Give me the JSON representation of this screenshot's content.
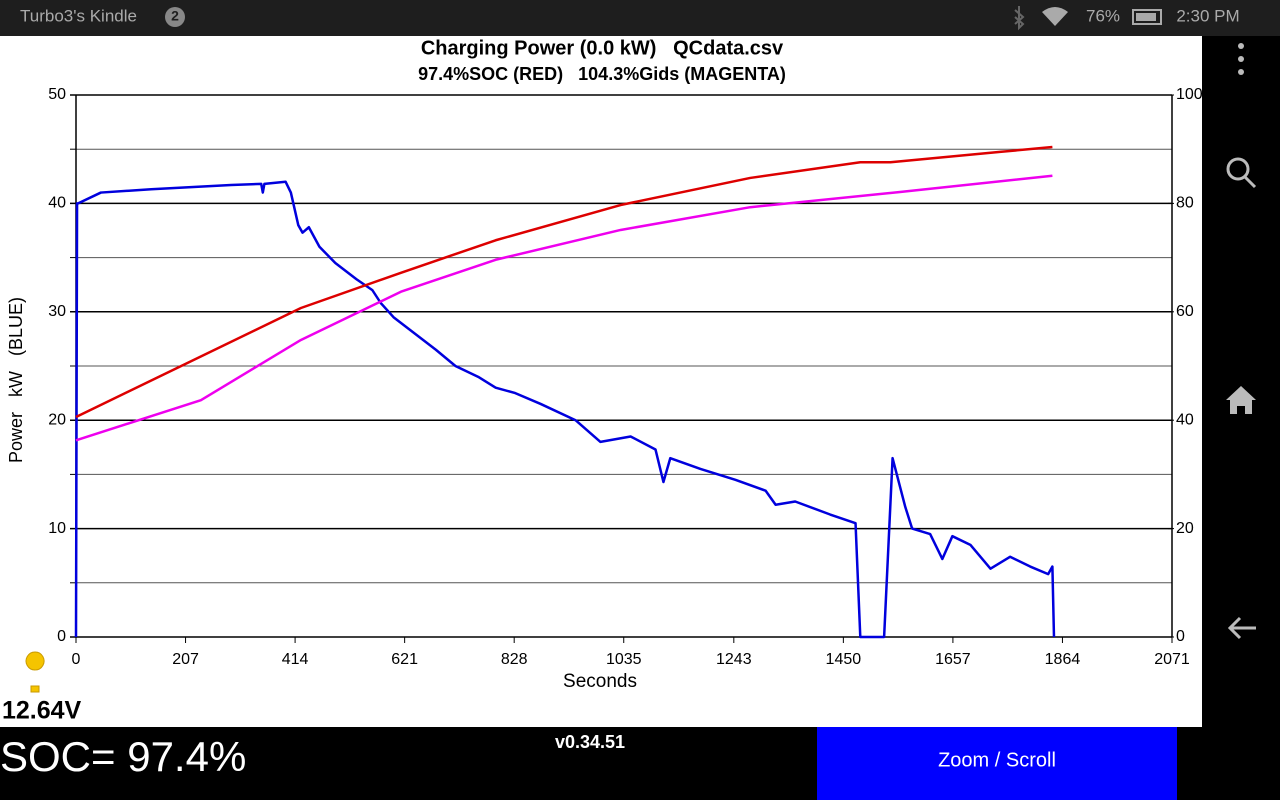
{
  "status_bar": {
    "device": "Turbo3's Kindle",
    "notifications": "2",
    "battery": "76%",
    "time": "2:30 PM"
  },
  "chart_data": {
    "type": "line",
    "title": "Charging Power (0.0 kW)   QCdata.csv",
    "subtitle": "97.4%SOC (RED)   104.3%Gids (MAGENTA)",
    "x_label": "Seconds",
    "y_label": "Power   kW   (BLUE)",
    "xlim": [
      0,
      2071
    ],
    "xticks": [
      0,
      207,
      414,
      621,
      828,
      1035,
      1243,
      1450,
      1657,
      1864,
      2071
    ],
    "ylim": [
      0,
      50
    ],
    "yticks": [
      0,
      10,
      20,
      30,
      40,
      50
    ],
    "yminor": [
      5,
      15,
      25,
      35,
      45
    ],
    "y2lim": [
      0,
      100
    ],
    "y2ticks": [
      0,
      20,
      40,
      60,
      80,
      100
    ],
    "grid": true,
    "series": [
      {
        "name": "Power",
        "color": "#0000dd",
        "axis": "y",
        "x": [
          0,
          2,
          4,
          47,
          142,
          293,
          350,
          353,
          356,
          396,
          406,
          420,
          428,
          440,
          460,
          490,
          530,
          560,
          576,
          600,
          640,
          680,
          717,
          760,
          793,
          830,
          878,
          944,
          991,
          1048,
          1095,
          1110,
          1123,
          1180,
          1246,
          1303,
          1322,
          1359,
          1425,
          1473,
          1482,
          1527,
          1543,
          1567,
          1580,
          1614,
          1637,
          1656,
          1690,
          1728,
          1765,
          1803,
          1837,
          1845,
          1848
        ],
        "values": [
          0,
          40,
          40,
          41,
          41.3,
          41.7,
          41.8,
          41,
          41.8,
          42,
          41,
          38,
          37.3,
          37.8,
          36,
          34.5,
          33,
          32,
          30.8,
          29.5,
          28,
          26.5,
          25,
          24,
          23,
          22.5,
          21.5,
          20,
          18,
          18.5,
          17.3,
          14.3,
          16.5,
          15.5,
          14.5,
          13.5,
          12.2,
          12.5,
          11.3,
          10.5,
          0,
          0,
          16.5,
          12,
          10,
          9.5,
          7.2,
          9.3,
          8.5,
          6.3,
          7.4,
          6.5,
          5.8,
          6.5,
          0
        ]
      },
      {
        "name": "SOC",
        "color": "#dd0000",
        "axis": "y2",
        "x": [
          0,
          425,
          614,
          793,
          1029,
          1274,
          1482,
          1539,
          1746,
          1845
        ],
        "values": [
          40.6,
          60.7,
          67.2,
          73.2,
          79.7,
          84.7,
          87.6,
          87.6,
          89.5,
          90.4
        ]
      },
      {
        "name": "Gids",
        "color": "#ee00ee",
        "axis": "y2",
        "x": [
          0,
          236,
          425,
          614,
          793,
          1029,
          1274,
          1557,
          1845
        ],
        "values": [
          36.3,
          43.7,
          54.8,
          63.7,
          69.6,
          75.1,
          79.3,
          82.1,
          85.1
        ]
      }
    ]
  },
  "voltage": "12.64V",
  "soc_readout": "SOC= 97.4%",
  "version": "v0.34.51",
  "button": "Zoom / Scroll"
}
